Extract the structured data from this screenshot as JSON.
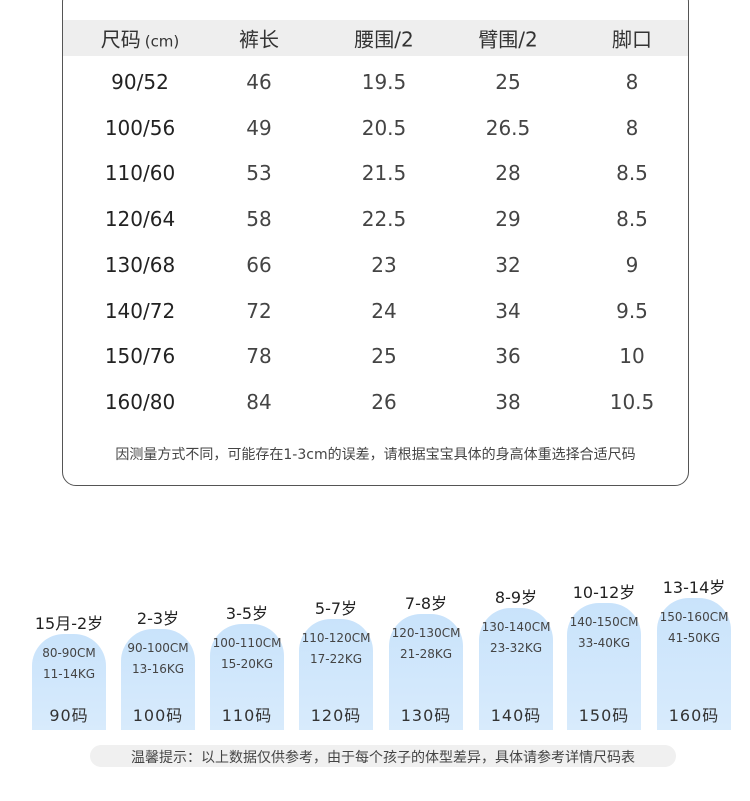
{
  "table": {
    "header": [
      "尺码",
      "裤长",
      "腰围/2",
      "臂围/2",
      "脚口"
    ],
    "header_unit": "(cm)",
    "rows": [
      [
        "90/52",
        "46",
        "19.5",
        "25",
        "8"
      ],
      [
        "100/56",
        "49",
        "20.5",
        "26.5",
        "8"
      ],
      [
        "110/60",
        "53",
        "21.5",
        "28",
        "8.5"
      ],
      [
        "120/64",
        "58",
        "22.5",
        "29",
        "8.5"
      ],
      [
        "130/68",
        "66",
        "23",
        "32",
        "9"
      ],
      [
        "140/72",
        "72",
        "24",
        "34",
        "9.5"
      ],
      [
        "150/76",
        "78",
        "25",
        "36",
        "10"
      ],
      [
        "160/80",
        "84",
        "26",
        "38",
        "10.5"
      ]
    ],
    "note": "因测量方式不同，可能存在1-3cm的误差，请根据宝宝具体的身高体重选择合适尺码"
  },
  "cards": [
    {
      "age": "15月-2岁",
      "height": "80-90CM",
      "weight": "11-14KG",
      "size": "90码"
    },
    {
      "age": "2-3岁",
      "height": "90-100CM",
      "weight": "13-16KG",
      "size": "100码"
    },
    {
      "age": "3-5岁",
      "height": "100-110CM",
      "weight": "15-20KG",
      "size": "110码"
    },
    {
      "age": "5-7岁",
      "height": "110-120CM",
      "weight": "17-22KG",
      "size": "120码"
    },
    {
      "age": "7-8岁",
      "height": "120-130CM",
      "weight": "21-28KG",
      "size": "130码"
    },
    {
      "age": "8-9岁",
      "height": "130-140CM",
      "weight": "23-32KG",
      "size": "140码"
    },
    {
      "age": "10-12岁",
      "height": "140-150CM",
      "weight": "33-40KG",
      "size": "150码"
    },
    {
      "age": "13-14岁",
      "height": "150-160CM",
      "weight": "41-50KG",
      "size": "160码"
    }
  ],
  "footer": "温馨提示：以上数据仅供参考，由于每个孩子的体型差异，具体请参考详情尺码表"
}
